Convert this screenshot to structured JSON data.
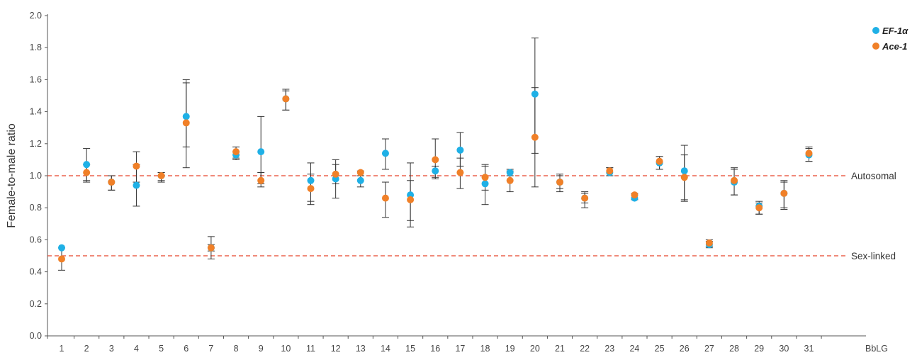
{
  "chart_data": {
    "type": "scatter",
    "title": "",
    "xlabel": "BbLG",
    "ylabel": "Female-to-male ratio",
    "ylim": [
      0,
      2.0
    ],
    "yticks": [
      "0.0",
      "0.2",
      "0.4",
      "0.6",
      "0.8",
      "1.0",
      "1.2",
      "1.4",
      "1.6",
      "1.8",
      "2.0"
    ],
    "categories": [
      "1",
      "2",
      "3",
      "4",
      "5",
      "6",
      "7",
      "8",
      "9",
      "10",
      "11",
      "12",
      "13",
      "14",
      "15",
      "16",
      "17",
      "18",
      "19",
      "20",
      "21",
      "22",
      "23",
      "24",
      "25",
      "26",
      "27",
      "28",
      "29",
      "30",
      "31"
    ],
    "grid": false,
    "legend_position": "top-right",
    "series": [
      {
        "name": "EF-1α",
        "color": "#1fb0e6",
        "values": [
          0.55,
          1.07,
          0.96,
          0.94,
          1.0,
          1.37,
          0.55,
          1.13,
          1.15,
          1.48,
          0.97,
          0.98,
          0.97,
          1.14,
          0.88,
          1.03,
          1.16,
          0.95,
          1.02,
          1.51,
          0.96,
          0.86,
          1.02,
          0.86,
          1.08,
          1.03,
          0.57,
          0.96,
          0.81,
          0.89,
          1.13
        ],
        "err_low": [
          0.55,
          0.97,
          0.91,
          0.81,
          0.97,
          1.18,
          0.53,
          1.1,
          0.95,
          1.41,
          0.84,
          0.86,
          0.93,
          1.04,
          0.68,
          0.99,
          1.06,
          0.82,
          1.0,
          1.14,
          0.92,
          0.83,
          1.0,
          0.85,
          1.04,
          0.85,
          0.56,
          0.88,
          0.76,
          0.8,
          1.09
        ],
        "err_high": [
          0.55,
          1.17,
          1.0,
          1.15,
          1.02,
          1.6,
          0.62,
          1.15,
          1.37,
          1.54,
          1.08,
          1.1,
          1.0,
          1.23,
          1.08,
          1.06,
          1.27,
          1.07,
          1.04,
          1.86,
          1.01,
          0.9,
          1.05,
          0.88,
          1.12,
          1.19,
          0.59,
          1.05,
          0.84,
          0.97,
          1.17
        ]
      },
      {
        "name": "Ace-1",
        "color": "#f08028",
        "values": [
          0.48,
          1.02,
          0.96,
          1.06,
          1.0,
          1.33,
          0.55,
          1.15,
          0.97,
          1.48,
          0.92,
          1.01,
          1.02,
          0.86,
          0.85,
          1.1,
          1.02,
          0.99,
          0.97,
          1.24,
          0.96,
          0.86,
          1.03,
          0.88,
          1.09,
          0.99,
          0.58,
          0.97,
          0.8,
          0.89,
          1.14
        ],
        "err_low": [
          0.41,
          0.96,
          0.91,
          0.96,
          0.96,
          1.05,
          0.48,
          1.11,
          0.93,
          1.41,
          0.82,
          0.95,
          1.0,
          0.74,
          0.72,
          0.98,
          0.92,
          0.91,
          0.9,
          0.93,
          0.9,
          0.8,
          1.0,
          0.86,
          1.04,
          0.84,
          0.55,
          0.88,
          0.76,
          0.79,
          1.09
        ],
        "err_high": [
          0.55,
          1.07,
          1.0,
          1.07,
          1.02,
          1.58,
          0.57,
          1.18,
          1.02,
          1.53,
          1.01,
          1.07,
          1.03,
          0.96,
          0.97,
          1.23,
          1.11,
          1.06,
          1.03,
          1.55,
          1.0,
          0.89,
          1.05,
          0.89,
          1.12,
          1.13,
          0.6,
          1.04,
          0.83,
          0.96,
          1.18
        ]
      }
    ],
    "reference_lines": [
      {
        "label": "Autosomal",
        "y": 1.0,
        "color": "#e8452a"
      },
      {
        "label": "Sex-linked",
        "y": 0.5,
        "color": "#e8452a"
      }
    ]
  }
}
